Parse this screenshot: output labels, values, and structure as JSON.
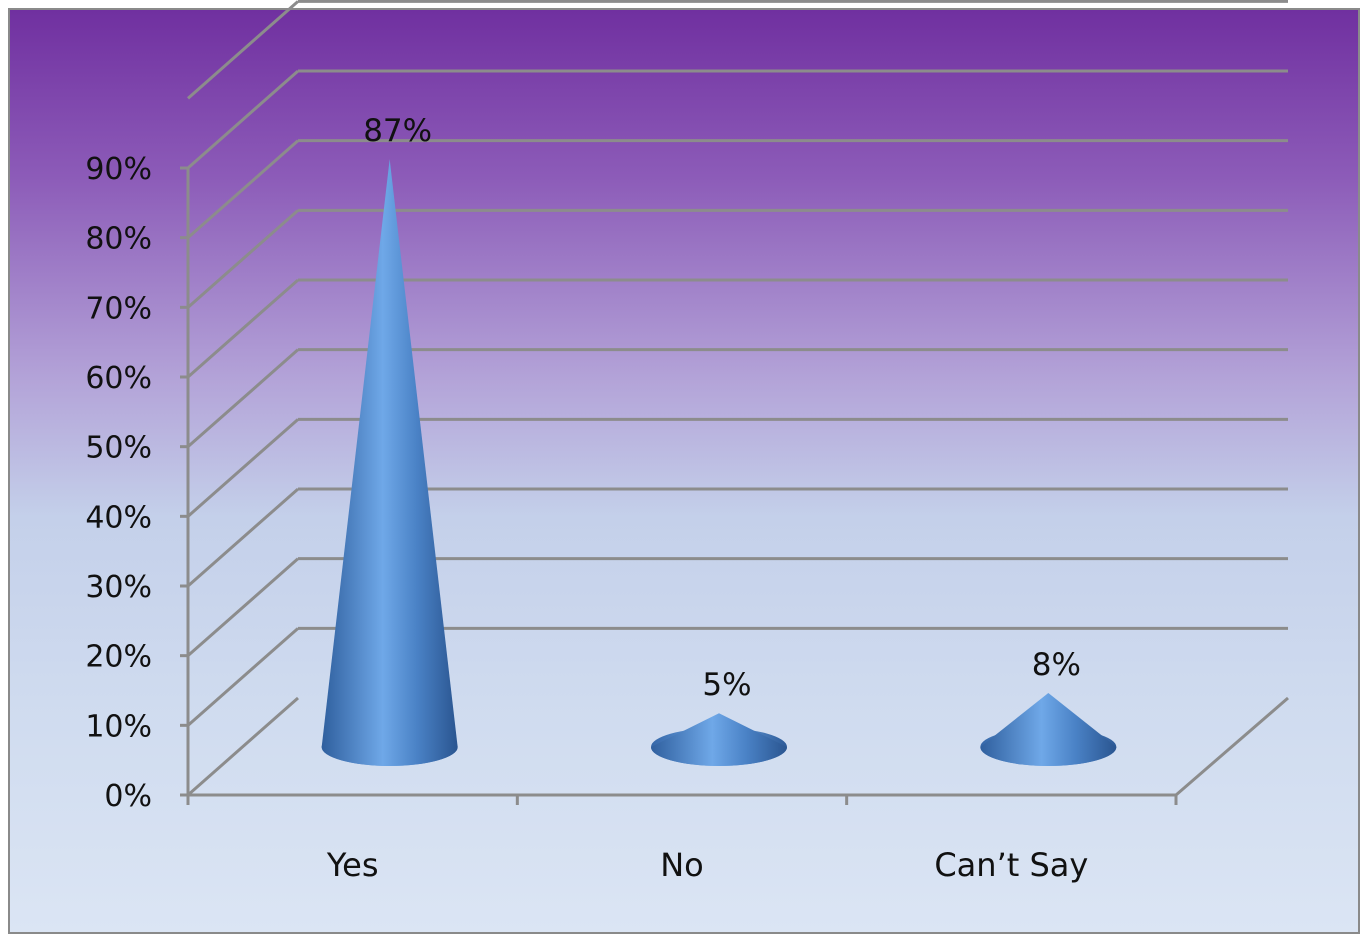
{
  "chart_data": {
    "type": "bar",
    "style": "3d-cone",
    "categories": [
      "Yes",
      "No",
      "Can’t Say"
    ],
    "values": [
      87,
      5,
      8
    ],
    "data_labels": [
      "87%",
      "5%",
      "8%"
    ],
    "y_ticks": [
      "0%",
      "10%",
      "20%",
      "30%",
      "40%",
      "50%",
      "60%",
      "70%",
      "80%",
      "90%"
    ],
    "ylim": [
      0,
      90
    ],
    "grid": true,
    "legend": "none",
    "colors": {
      "cone_dark": "#2f5f9e",
      "cone_light": "#6fa8e8",
      "grid": "#8c8c8c"
    }
  }
}
